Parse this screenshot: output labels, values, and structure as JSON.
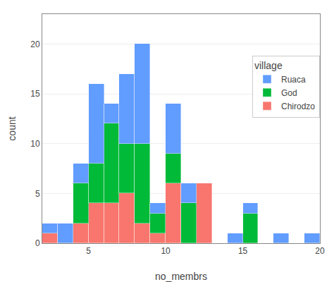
{
  "chart_data": {
    "type": "histogram",
    "xlabel": "no_membrs",
    "ylabel": "count",
    "legend_title": "village",
    "bins": [
      2,
      3,
      4,
      5,
      6,
      7,
      8,
      9,
      10,
      11,
      12,
      13,
      14,
      15,
      16,
      17,
      18,
      19,
      20,
      21
    ],
    "series": [
      {
        "name": "Chirodzo",
        "color": "#F8766D",
        "values": [
          1,
          0,
          2,
          4,
          4,
          5,
          2,
          1,
          6,
          0,
          6,
          0,
          0,
          0,
          0,
          0,
          0,
          0,
          0
        ]
      },
      {
        "name": "God",
        "color": "#00BA38",
        "values": [
          0,
          0,
          4,
          4,
          8,
          5,
          8,
          2,
          3,
          4,
          0,
          0,
          0,
          3,
          0,
          0,
          0,
          0,
          0
        ]
      },
      {
        "name": "Ruaca",
        "color": "#619CFF",
        "values": [
          1,
          2,
          2,
          8,
          2,
          7,
          10,
          1,
          5,
          2,
          0,
          0,
          1,
          1,
          0,
          1,
          0,
          1,
          0
        ]
      }
    ],
    "stacked": true,
    "xlim": [
      2,
      20
    ],
    "ylim": [
      0,
      23
    ],
    "xticks": [
      5,
      10,
      15,
      20
    ],
    "yticks": [
      0,
      5,
      10,
      15,
      20
    ],
    "grid": true,
    "legend": "upper right"
  }
}
